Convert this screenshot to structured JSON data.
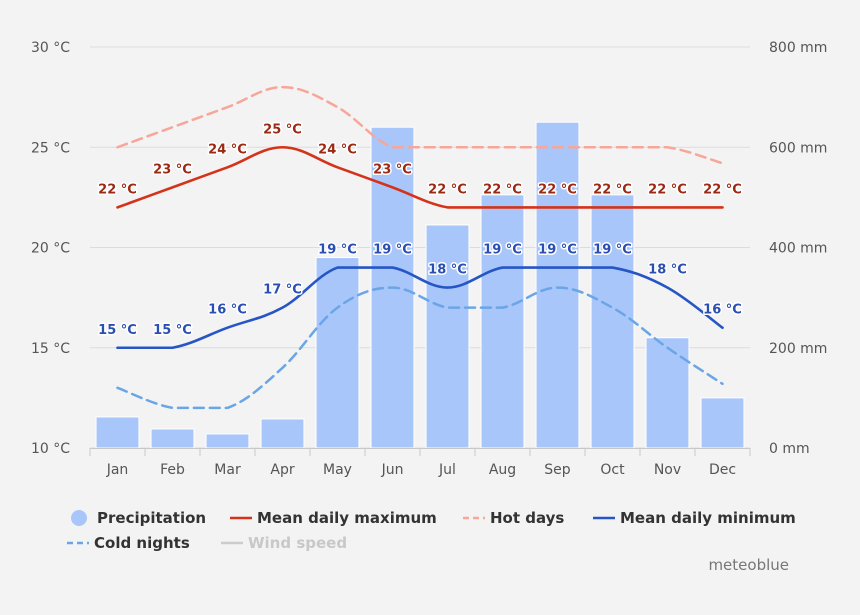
{
  "chart_data": {
    "type": "bar+line",
    "categories": [
      "Jan",
      "Feb",
      "Mar",
      "Apr",
      "May",
      "Jun",
      "Jul",
      "Aug",
      "Sep",
      "Oct",
      "Nov",
      "Dec"
    ],
    "y_left": {
      "ticks": [
        "10 °C",
        "15 °C",
        "20 °C",
        "25 °C",
        "30 °C"
      ],
      "range": [
        10,
        30
      ],
      "unit": "°C"
    },
    "y_right": {
      "ticks": [
        "0 mm",
        "200 mm",
        "400 mm",
        "600 mm",
        "800 mm"
      ],
      "range": [
        0,
        800
      ],
      "unit": "mm"
    },
    "bars": {
      "name": "Precipitation",
      "color": "#a9c6fb",
      "values": [
        62,
        38,
        28,
        58,
        380,
        640,
        445,
        505,
        650,
        505,
        220,
        100
      ]
    },
    "lines": [
      {
        "name": "Mean daily maximum",
        "color": "#d4331a",
        "dash": "solid",
        "values": [
          22,
          23,
          24,
          25,
          24,
          23,
          22,
          22,
          22,
          22,
          22,
          22
        ],
        "labels": [
          "22 °C",
          "23 °C",
          "24 °C",
          "25 °C",
          "24 °C",
          "23 °C",
          "22 °C",
          "22 °C",
          "22 °C",
          "22 °C",
          "22 °C",
          "22 °C"
        ],
        "label_color": "#9b2a14"
      },
      {
        "name": "Hot days",
        "color": "#f7a699",
        "dash": "dashed",
        "values": [
          25,
          26,
          27,
          28,
          27,
          25,
          25,
          25,
          25,
          25,
          25,
          24.2
        ]
      },
      {
        "name": "Mean daily minimum",
        "color": "#2655c5",
        "dash": "solid",
        "values": [
          15,
          15,
          16,
          17,
          19,
          19,
          18,
          19,
          19,
          19,
          18,
          16
        ],
        "labels": [
          "15 °C",
          "15 °C",
          "16 °C",
          "17 °C",
          "19 °C",
          "19 °C",
          "18 °C",
          "19 °C",
          "19 °C",
          "19 °C",
          "18 °C",
          "16 °C"
        ],
        "label_color": "#2a4fb0"
      },
      {
        "name": "Cold nights",
        "color": "#6aa6e6",
        "dash": "dashed",
        "values": [
          13,
          12,
          12,
          14,
          17,
          18,
          17,
          17,
          18,
          17,
          15,
          13.2
        ]
      }
    ],
    "legend": [
      {
        "name": "Precipitation",
        "symbol": "circle",
        "color": "#a9c6fb",
        "enabled": true
      },
      {
        "name": "Mean daily maximum",
        "symbol": "line",
        "color": "#d4331a",
        "enabled": true
      },
      {
        "name": "Hot days",
        "symbol": "dash",
        "color": "#f7a699",
        "enabled": true
      },
      {
        "name": "Mean daily minimum",
        "symbol": "line",
        "color": "#2655c5",
        "enabled": true
      },
      {
        "name": "Cold nights",
        "symbol": "dash",
        "color": "#6aa6e6",
        "enabled": true
      },
      {
        "name": "Wind speed",
        "symbol": "line",
        "color": "#cccccc",
        "enabled": false
      }
    ],
    "legend_position": "bottom",
    "grid": true
  },
  "credit": "meteoblue"
}
